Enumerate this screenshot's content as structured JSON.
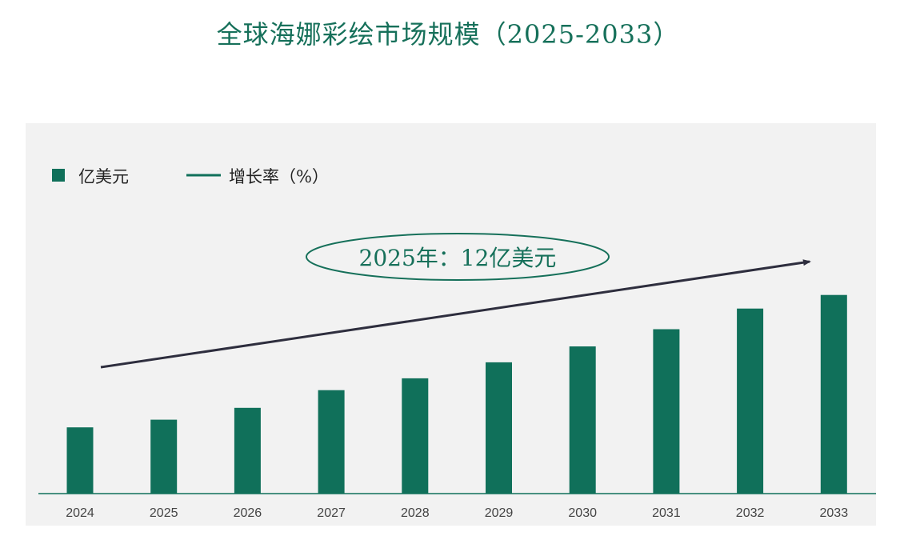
{
  "title": "全球海娜彩绘市场规模（2025-2033）",
  "colors": {
    "title": "#16705a",
    "bar": "#10705a",
    "panel": "#f2f2f2",
    "arrow": "#2e2e3e",
    "axis": "#10705a"
  },
  "chart_data": {
    "type": "bar",
    "categories": [
      "2024",
      "2025",
      "2026",
      "2027",
      "2028",
      "2029",
      "2030",
      "2031",
      "2032",
      "2033"
    ],
    "series": [
      {
        "name": "亿美元",
        "values": [
          11.2,
          12.5,
          14.5,
          17.5,
          19.5,
          22.2,
          24.9,
          27.8,
          31.3,
          33.6
        ]
      }
    ],
    "legend": [
      {
        "label": "亿美元",
        "kind": "square"
      },
      {
        "label": "增长率（%）",
        "kind": "line"
      }
    ],
    "legend_position": "top-left",
    "annotation": "2025年：12亿美元",
    "ylim": [
      0,
      46
    ],
    "grid": false,
    "trend_arrow": true
  }
}
